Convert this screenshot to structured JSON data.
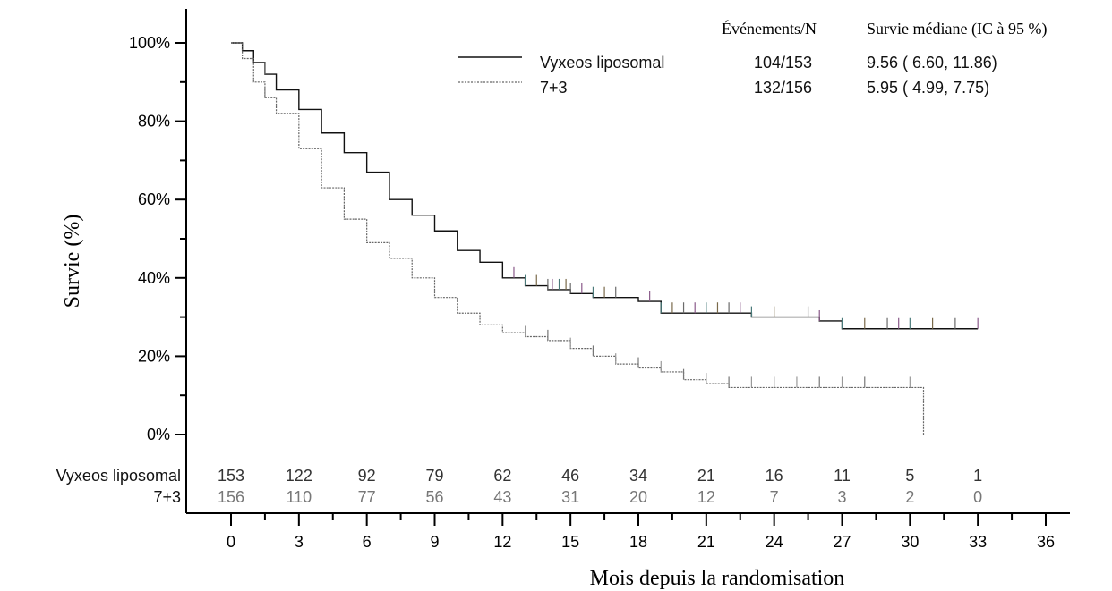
{
  "chart_data": {
    "type": "line",
    "step": true,
    "xlabel": "Mois depuis la randomisation",
    "ylabel": "Survie (%)",
    "xlim": [
      0,
      36
    ],
    "ylim": [
      0,
      100
    ],
    "x_ticks": [
      "0",
      "3",
      "6",
      "9",
      "12",
      "15",
      "18",
      "21",
      "24",
      "27",
      "30",
      "33",
      "36"
    ],
    "y_ticks": [
      "0%",
      "20%",
      "40%",
      "60%",
      "80%",
      "100%"
    ],
    "grid": false,
    "legend": {
      "placement": "top-right",
      "header_events": "Événements/N",
      "header_median": "Survie médiane (IC à 95 %)",
      "rows": [
        {
          "name": "Vyxeos liposomal",
          "events": "104/153",
          "median": "9.56 ( 6.60, 11.86)"
        },
        {
          "name": "7+3",
          "events": "132/156",
          "median": "5.95 ( 4.99, 7.75)"
        }
      ]
    },
    "series": [
      {
        "name": "Vyxeos liposomal",
        "color": "#111111",
        "dash": "solid",
        "points": [
          [
            0,
            100
          ],
          [
            0.5,
            98
          ],
          [
            1,
            95
          ],
          [
            1.5,
            92
          ],
          [
            2,
            88
          ],
          [
            3,
            83
          ],
          [
            4,
            77
          ],
          [
            5,
            72
          ],
          [
            6,
            67
          ],
          [
            7,
            60
          ],
          [
            8,
            56
          ],
          [
            9,
            52
          ],
          [
            10,
            47
          ],
          [
            11,
            44
          ],
          [
            12,
            40
          ],
          [
            13,
            38
          ],
          [
            14,
            37
          ],
          [
            15,
            36
          ],
          [
            16,
            35
          ],
          [
            18,
            34
          ],
          [
            19,
            31
          ],
          [
            21,
            31
          ],
          [
            23,
            30
          ],
          [
            24,
            30
          ],
          [
            26,
            29
          ],
          [
            27,
            27
          ],
          [
            33,
            27
          ]
        ],
        "censor_x": [
          1.5,
          12.5,
          13,
          13.5,
          14,
          14.2,
          14.5,
          14.8,
          15,
          15.5,
          16,
          16.5,
          17,
          18.5,
          19,
          19.5,
          20,
          20.5,
          21,
          21.5,
          22,
          22.5,
          23,
          24,
          25.5,
          26,
          27,
          28,
          29,
          29.5,
          30,
          31,
          32,
          33
        ]
      },
      {
        "name": "7+3",
        "color": "#666666",
        "dash": "dotted",
        "points": [
          [
            0,
            100
          ],
          [
            0.5,
            96
          ],
          [
            1,
            90
          ],
          [
            1.5,
            86
          ],
          [
            2,
            82
          ],
          [
            3,
            73
          ],
          [
            4,
            63
          ],
          [
            5,
            55
          ],
          [
            6,
            49
          ],
          [
            7,
            45
          ],
          [
            8,
            40
          ],
          [
            9,
            35
          ],
          [
            10,
            31
          ],
          [
            11,
            28
          ],
          [
            12,
            26
          ],
          [
            13,
            25
          ],
          [
            14,
            24
          ],
          [
            15,
            22
          ],
          [
            16,
            20
          ],
          [
            17,
            18
          ],
          [
            18,
            17
          ],
          [
            19,
            16
          ],
          [
            20,
            14
          ],
          [
            21,
            13
          ],
          [
            22,
            12
          ],
          [
            30,
            12
          ],
          [
            30.6,
            12
          ],
          [
            30.6,
            0
          ]
        ],
        "censor_x": [
          1.5,
          13,
          14,
          15,
          16,
          17,
          18,
          19,
          20,
          21,
          22,
          23,
          24,
          25,
          26,
          27,
          28,
          30
        ]
      }
    ],
    "risk_table": {
      "rows": [
        {
          "label": "Vyxeos liposomal",
          "values": [
            "153",
            "122",
            "92",
            "79",
            "62",
            "46",
            "34",
            "21",
            "16",
            "11",
            "5",
            "1"
          ]
        },
        {
          "label": "7+3",
          "values": [
            "156",
            "110",
            "77",
            "56",
            "43",
            "31",
            "20",
            "12",
            "7",
            "3",
            "2",
            "0"
          ]
        }
      ],
      "x": [
        0,
        3,
        6,
        9,
        12,
        15,
        18,
        21,
        24,
        27,
        30,
        33
      ]
    }
  }
}
